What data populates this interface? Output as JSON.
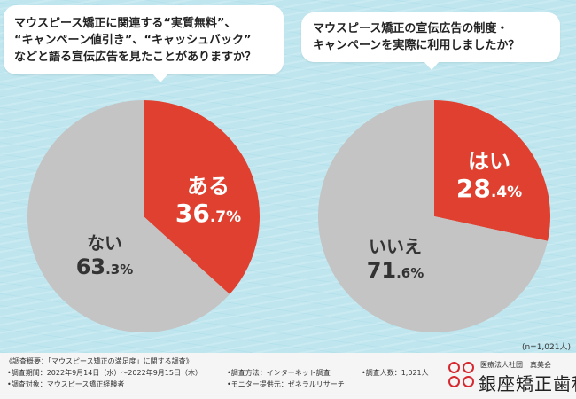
{
  "questions": {
    "q1": [
      "マウスピース矯正に関連する“実質無料”、",
      "“キャンペーン値引き”、“キャッシュバック”",
      "などと語る宣伝広告を見たことがありますか？"
    ],
    "q2": [
      "マウスピース矯正の宣伝広告の制度・",
      "キャンペーンを実際に利用しましたか？"
    ]
  },
  "chart_data": [
    {
      "type": "pie",
      "title": "",
      "slices": [
        {
          "label": "ある",
          "value": 36.7,
          "display_int": "36",
          "display_dec": ".7%",
          "color": "#e0402f"
        },
        {
          "label": "ない",
          "value": 63.3,
          "display_int": "63",
          "display_dec": ".3%",
          "color": "#c4c4c4"
        }
      ]
    },
    {
      "type": "pie",
      "title": "",
      "slices": [
        {
          "label": "はい",
          "value": 28.4,
          "display_int": "28",
          "display_dec": ".4%",
          "color": "#e0402f"
        },
        {
          "label": "いいえ",
          "value": 71.6,
          "display_int": "71",
          "display_dec": ".6%",
          "color": "#c4c4c4"
        }
      ]
    }
  ],
  "sample_note": "(n=1,021人)",
  "footer": {
    "survey_title": "《調査概要：「マウスピース矯正の満足度」に関する調査》",
    "period": "•調査期間：2022年9月14日（水）～2022年9月15日（木）",
    "target": "•調査対象：マウスピース矯正経験者",
    "method": "•調査方法：インターネット調査",
    "provider": "•モニター提供元：ゼネラルリサーチ",
    "count": "•調査人数：1,021人"
  },
  "logo": {
    "small": "医療法人社団　真美会",
    "big": "銀座矯正歯科",
    "brand_color": "#d7282f"
  }
}
